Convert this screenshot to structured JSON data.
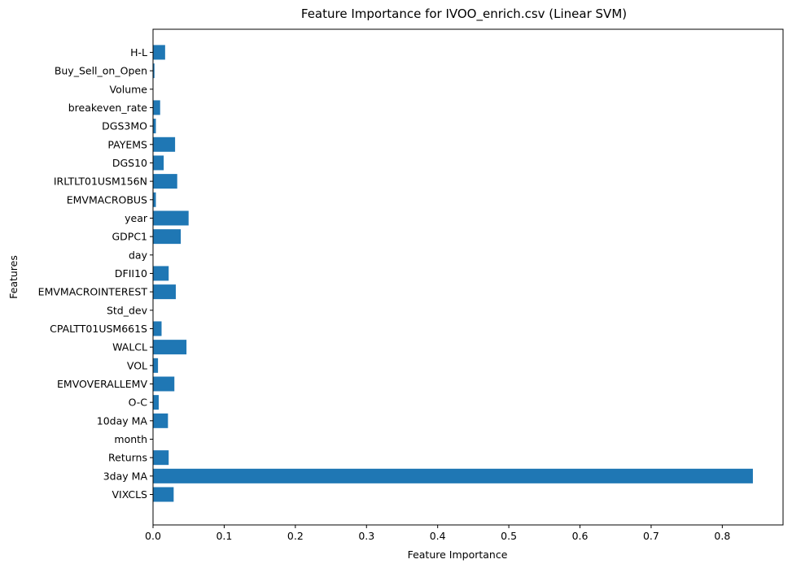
{
  "chart_data": {
    "type": "bar",
    "orientation": "horizontal",
    "title": "Feature Importance for IVOO_enrich.csv (Linear SVM)",
    "xlabel": "Feature Importance",
    "ylabel": "Features",
    "xlim": [
      0,
      0.875
    ],
    "xticks": [
      0.0,
      0.1,
      0.2,
      0.3,
      0.4,
      0.5,
      0.6,
      0.7,
      0.8
    ],
    "xtick_labels": [
      "0.0",
      "0.1",
      "0.2",
      "0.3",
      "0.4",
      "0.5",
      "0.6",
      "0.7",
      "0.8"
    ],
    "grid": false,
    "bar_color": "#1f77b4",
    "categories": [
      "VIXCLS",
      "3day MA",
      "Returns",
      "month",
      "10day MA",
      "O-C",
      "EMVOVERALLEMV",
      "VOL",
      "WALCL",
      "CPALTT01USM661S",
      "Std_dev",
      "EMVMACROINTEREST",
      "DFII10",
      "day",
      "GDPC1",
      "year",
      "EMVMACROBUS",
      "IRLTLT01USM156N",
      "DGS10",
      "PAYEMS",
      "DGS3MO",
      "breakeven_rate",
      "Volume",
      "Buy_Sell_on_Open",
      "H-L"
    ],
    "values": [
      0.029,
      0.843,
      0.022,
      0.0003,
      0.021,
      0.008,
      0.03,
      0.007,
      0.047,
      0.012,
      0.0003,
      0.032,
      0.022,
      0.0003,
      0.039,
      0.05,
      0.004,
      0.034,
      0.015,
      0.031,
      0.004,
      0.01,
      0.0003,
      0.002,
      0.017
    ]
  }
}
